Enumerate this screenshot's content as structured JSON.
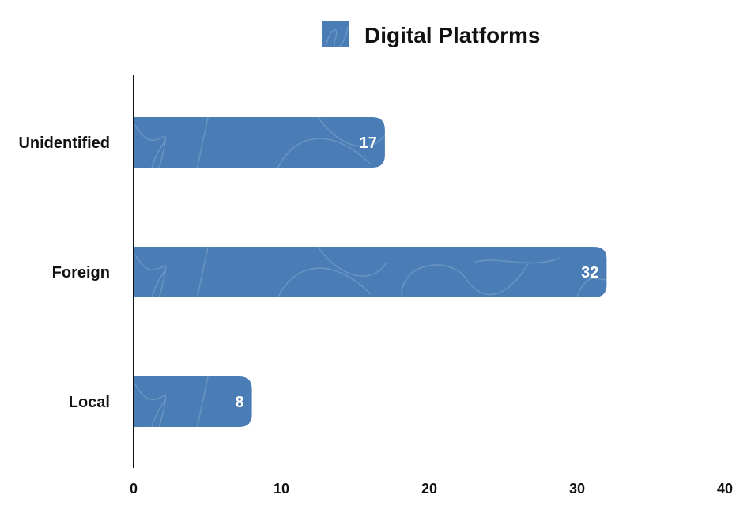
{
  "chart_data": {
    "type": "bar",
    "orientation": "horizontal",
    "categories": [
      "Unidentified",
      "Foreign",
      "Local"
    ],
    "series": [
      {
        "name": "Digital Platforms",
        "values": [
          17,
          32,
          8
        ],
        "color": "#4a7db5"
      }
    ],
    "xlim": [
      0,
      40
    ],
    "xticks": [
      0,
      10,
      20,
      30,
      40
    ],
    "xlabel": "",
    "ylabel": "",
    "grid": false,
    "legend_position": "top-center",
    "data_labels": true
  }
}
